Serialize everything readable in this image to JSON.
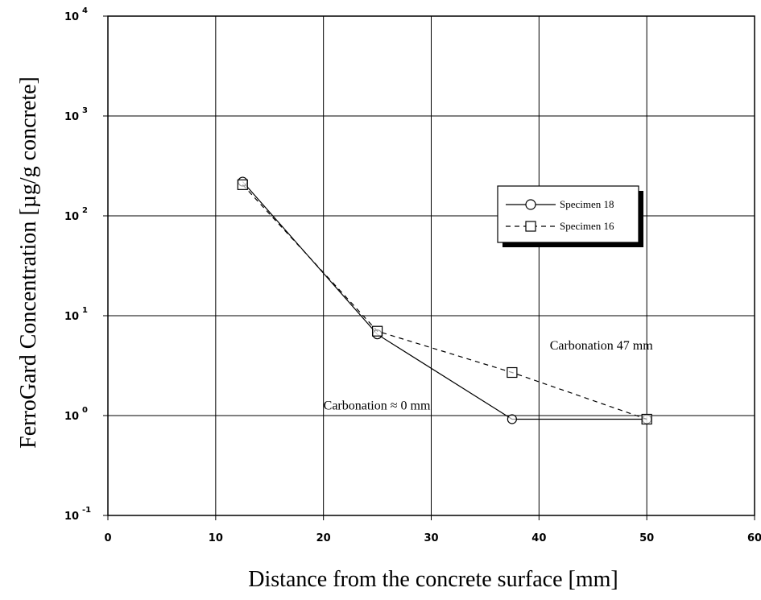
{
  "chart_data": {
    "type": "line",
    "xlabel": "Distance from the concrete surface [mm]",
    "ylabel": "FerroGard Concentration [µg/g concrete]",
    "xlim": [
      0,
      60
    ],
    "ylim": [
      0.1,
      10000
    ],
    "y_scale": "log",
    "grid": true,
    "x_ticks": [
      "0",
      "10",
      "20",
      "30",
      "40",
      "50",
      "60"
    ],
    "y_ticks": [
      {
        "base": "10",
        "exp": "4"
      },
      {
        "base": "10",
        "exp": "3"
      },
      {
        "base": "10",
        "exp": "2"
      },
      {
        "base": "10",
        "exp": "1"
      },
      {
        "base": "10",
        "exp": "0"
      },
      {
        "base": "10",
        "exp": "-1"
      }
    ],
    "legend_position": "right",
    "series": [
      {
        "name": "Specimen 18",
        "marker": "circle",
        "line": "solid",
        "x": [
          12.5,
          25,
          37.5,
          50
        ],
        "y": [
          220,
          6.5,
          0.92,
          0.92
        ]
      },
      {
        "name": "Specimen 16",
        "marker": "square",
        "line": "dashed",
        "x": [
          12.5,
          25,
          37.5,
          50
        ],
        "y": [
          205,
          7.0,
          2.7,
          0.92
        ]
      }
    ],
    "annotations": [
      {
        "text": "Carbonation 47 mm",
        "x": 41.0,
        "y": 4.6
      },
      {
        "text": "Carbonation ≈ 0 mm",
        "x": 20.0,
        "y": 1.15
      }
    ]
  }
}
